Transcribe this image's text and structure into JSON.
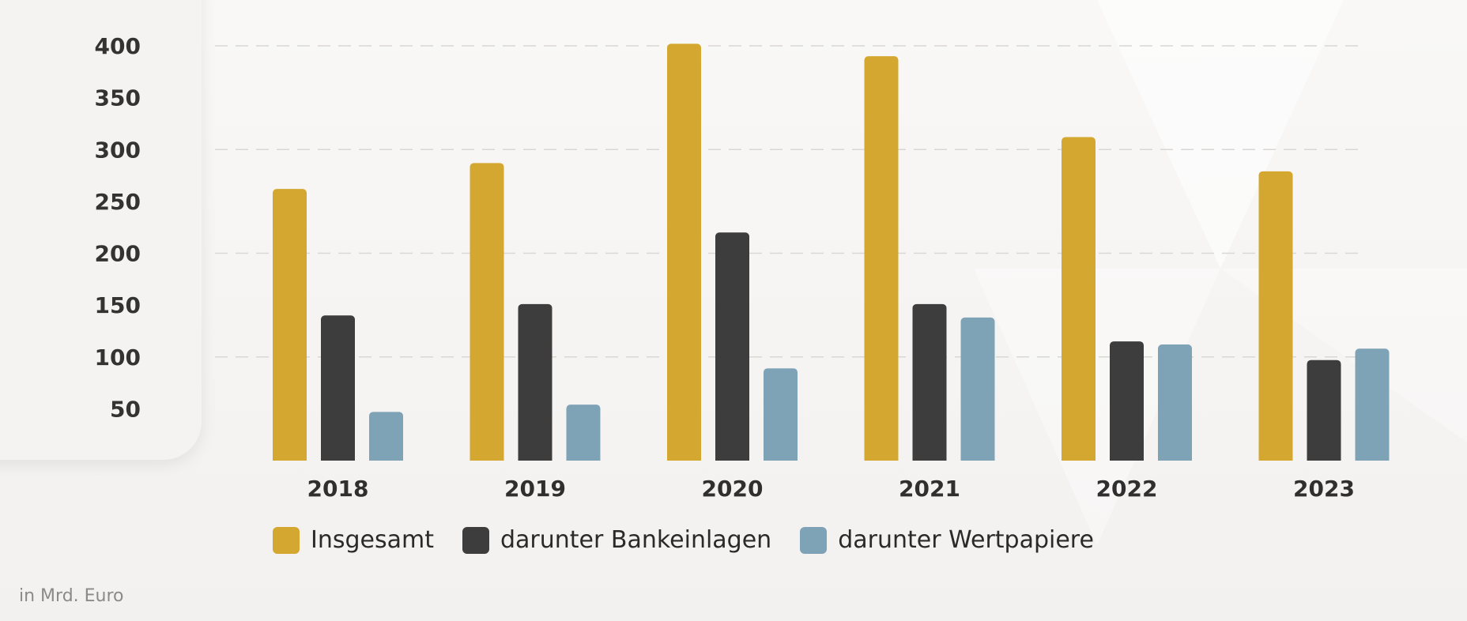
{
  "footnote": "in Mrd. Euro",
  "chart_data": {
    "type": "bar",
    "title": "",
    "xlabel": "",
    "ylabel": "",
    "unit": "in Mrd. Euro",
    "categories": [
      "2018",
      "2019",
      "2020",
      "2021",
      "2022",
      "2023"
    ],
    "y_ticks": [
      50,
      100,
      150,
      200,
      250,
      300,
      350,
      400
    ],
    "ylim": [
      0,
      410
    ],
    "grid": true,
    "legend_position": "bottom",
    "series": [
      {
        "name": "Insgesamt",
        "color": "#d4a830",
        "values": [
          262,
          287,
          402,
          390,
          312,
          279
        ]
      },
      {
        "name": "darunter Bankeinlagen",
        "color": "#3d3d3d",
        "values": [
          140,
          151,
          220,
          151,
          115,
          97
        ]
      },
      {
        "name": "darunter Wertpapiere",
        "color": "#7fa3b6",
        "values": [
          47,
          54,
          89,
          138,
          112,
          108
        ]
      }
    ]
  }
}
